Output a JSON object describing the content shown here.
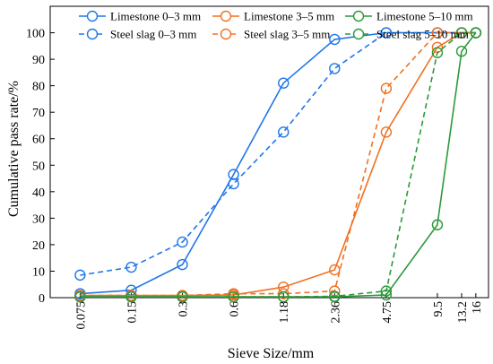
{
  "chart_data": {
    "type": "line",
    "title": "",
    "xlabel": "Sieve Size/mm",
    "ylabel": "Cumulative pass rate/%",
    "x_scale": "log",
    "x": [
      0.075,
      0.15,
      0.3,
      0.6,
      1.18,
      2.36,
      4.75,
      9.5,
      13.2,
      16
    ],
    "x_tick_labels": [
      "0.075",
      "0.15",
      "0.3",
      "0.6",
      "1.18",
      "2.36",
      "4.75",
      "9.5",
      "13.2",
      "16"
    ],
    "ylim": [
      0,
      110
    ],
    "y_ticks": [
      0,
      10,
      20,
      30,
      40,
      50,
      60,
      70,
      80,
      90,
      100
    ],
    "grid": false,
    "legend_position": "top",
    "series": [
      {
        "name": "Limestone 0–3 mm",
        "color": "#1f77e8",
        "dash": "solid",
        "values": [
          1.5,
          2.8,
          12.5,
          46.5,
          81,
          97.5,
          100,
          100,
          100,
          100
        ]
      },
      {
        "name": "Steel slag 0–3 mm",
        "color": "#1f77e8",
        "dash": "dashed",
        "values": [
          8.5,
          11.5,
          21,
          43,
          62.5,
          86.5,
          100,
          100,
          100,
          100
        ]
      },
      {
        "name": "Limestone 3–5 mm",
        "color": "#f07020",
        "dash": "solid",
        "values": [
          0.8,
          0.8,
          0.8,
          1.0,
          4.0,
          10.5,
          62.5,
          94.5,
          100,
          100
        ]
      },
      {
        "name": "Steel slag 3–5 mm",
        "color": "#f07020",
        "dash": "dashed",
        "values": [
          0.8,
          0.8,
          0.8,
          1.5,
          1.5,
          2.5,
          79,
          100,
          100,
          100
        ]
      },
      {
        "name": "Limestone 5–10 mm",
        "color": "#2a9a3a",
        "dash": "solid",
        "values": [
          0.3,
          0.3,
          0.3,
          0.3,
          0.3,
          0.3,
          1.0,
          27.5,
          93,
          100
        ]
      },
      {
        "name": "Steel slag 5–10 mm",
        "color": "#2a9a3a",
        "dash": "dashed",
        "values": [
          0.3,
          0.3,
          0.3,
          0.3,
          0.3,
          0.5,
          2.5,
          92.5,
          100,
          100
        ]
      }
    ]
  }
}
